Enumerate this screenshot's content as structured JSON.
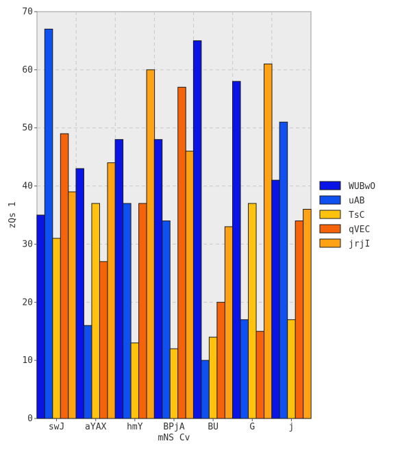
{
  "chart_data": {
    "type": "bar",
    "categories": [
      "swJ",
      "aYAX",
      "hmY",
      "BPjA",
      "BU",
      "G",
      "j"
    ],
    "series": [
      {
        "name": "WUBwO",
        "color": "#0a14e6",
        "values": [
          35,
          43,
          48,
          48,
          65,
          58,
          41
        ]
      },
      {
        "name": "uAB",
        "color": "#0f50f0",
        "values": [
          67,
          16,
          37,
          34,
          10,
          17,
          51
        ]
      },
      {
        "name": "TsC",
        "color": "#ffc20e",
        "values": [
          31,
          37,
          13,
          12,
          14,
          37,
          17
        ]
      },
      {
        "name": "qVEC",
        "color": "#f5640a",
        "values": [
          49,
          27,
          37,
          57,
          20,
          15,
          34
        ]
      },
      {
        "name": "jrjI",
        "color": "#ffa314",
        "values": [
          39,
          44,
          60,
          46,
          33,
          61,
          36
        ]
      }
    ],
    "title": "",
    "xlabel": "mNS Cv",
    "ylabel": "zQs 1",
    "ylim": [
      0,
      70
    ],
    "yticks": [
      0,
      10,
      20,
      30,
      40,
      50,
      60,
      70
    ],
    "grid": true,
    "legend": "right",
    "plot_background": "#ececec"
  }
}
